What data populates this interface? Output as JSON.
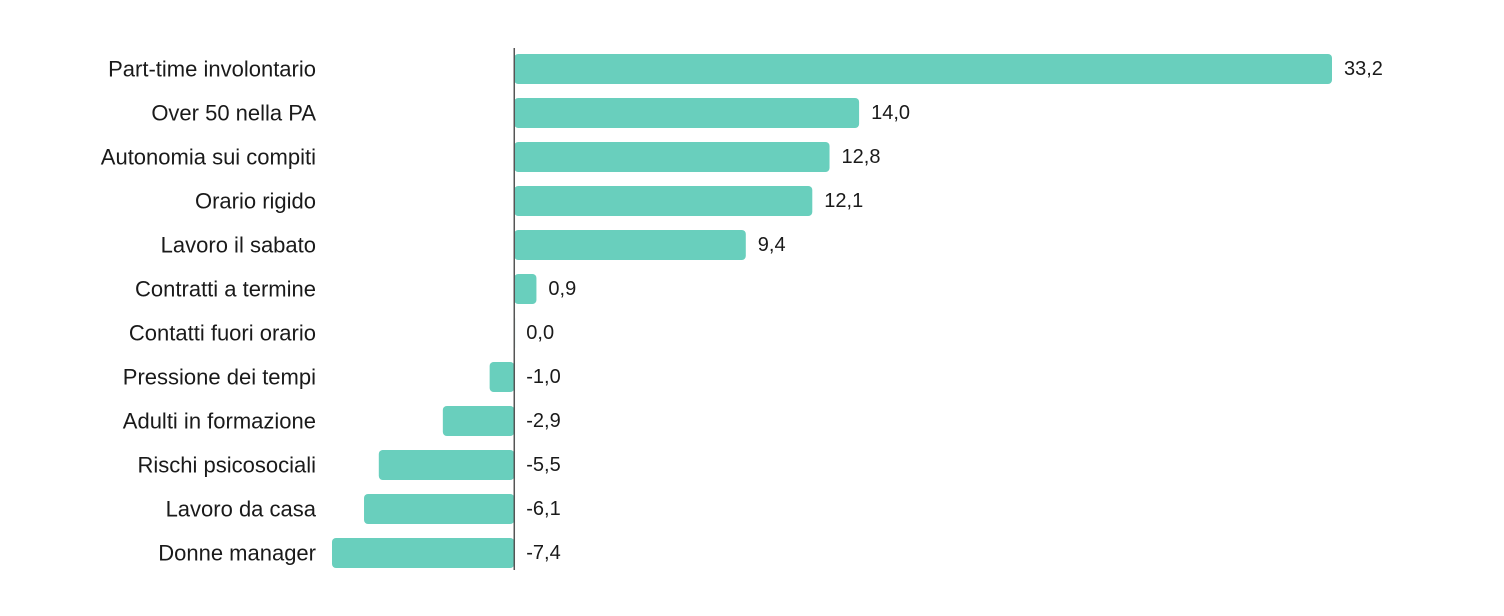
{
  "chart_data": {
    "type": "bar",
    "orientation": "horizontal",
    "title": "",
    "xlabel": "",
    "ylabel": "",
    "grid": false,
    "legend": "none",
    "zero_line": true,
    "colors": {
      "bar": "#69cfbd",
      "zero_line": "#555555",
      "text": "#1a1a1a"
    },
    "categories": [
      "Part-time involontario",
      "Over 50 nella PA",
      "Autonomia sui compiti",
      "Orario rigido",
      "Lavoro il sabato",
      "Contratti a termine",
      "Contatti fuori orario",
      "Pressione dei tempi",
      "Adulti in formazione",
      "Rischi psicosociali",
      "Lavoro da casa",
      "Donne manager"
    ],
    "values": [
      33.2,
      14.0,
      12.8,
      12.1,
      9.4,
      0.9,
      0.0,
      -1.0,
      -2.9,
      -5.5,
      -6.1,
      -7.4
    ],
    "value_labels": [
      "33,2",
      "14,0",
      "12,8",
      "12,1",
      "9,4",
      "0,9",
      "0,0",
      "-1,0",
      "-2,9",
      "-5,5",
      "-6,1",
      "-7,4"
    ],
    "xlim": [
      -7.4,
      33.2
    ]
  }
}
